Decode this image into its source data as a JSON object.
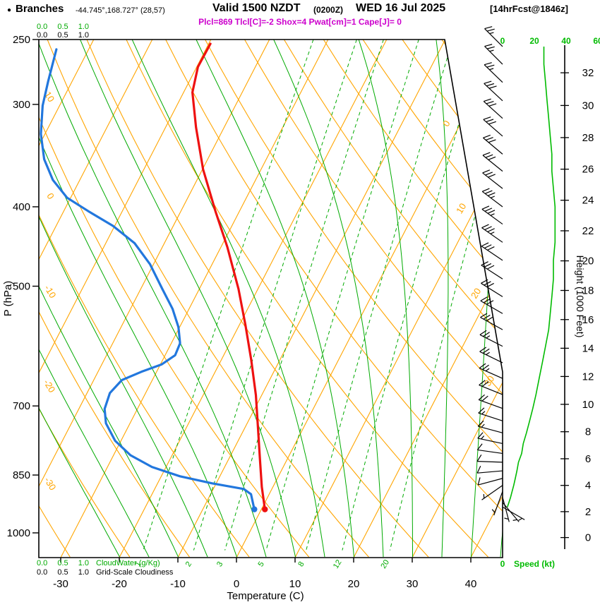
{
  "header": {
    "marker": "●",
    "station": "Branches",
    "coords": "-44.745°,168.727° (28,57)",
    "valid_main": "Valid 1500 NZDT",
    "valid_sub": "(0200Z)",
    "valid_date": "WED 16 Jul 2025",
    "fcst": "[14hrFcst@1846z]",
    "indices": "Plcl=869 Tlcl[C]=-2 Shox=4 Pwat[cm]=1 Cape[J]= 0"
  },
  "legend": {
    "scale": "0.0 0.5 1.0",
    "cloudwater_label": "CloudWater (g/Kg)",
    "gridscale_label": "Grid-Scale Cloudiness"
  },
  "chart_data": {
    "type": "skewt_log_p_sounding",
    "colors": {
      "temperature": "#ee1111",
      "dewpoint": "#2277dd",
      "grid_warm": "#ffa500",
      "grid_moist": "#00aa00",
      "speed_curve": "#00bb00",
      "indices_text": "#cc00cc",
      "frame": "#000000"
    },
    "axes": {
      "pressure": {
        "title": "P (hPa)",
        "ticks": [
          250,
          300,
          400,
          500,
          700,
          850,
          1000
        ],
        "range": [
          250,
          1070
        ]
      },
      "temperature": {
        "title": "Temperature (C)",
        "ticks": [
          -30,
          -20,
          -10,
          0,
          10,
          20,
          30,
          40
        ]
      },
      "height": {
        "title": "Height (1000 Feet)",
        "ticks": [
          0,
          2,
          4,
          6,
          8,
          10,
          12,
          14,
          16,
          18,
          20,
          22,
          24,
          26,
          28,
          30,
          32
        ]
      },
      "speed": {
        "title": "Speed (kt)",
        "ticks": [
          0,
          20,
          40,
          60
        ]
      },
      "dry_adiabat_labels_c": [
        10,
        0,
        -10,
        -20,
        -30
      ],
      "isotherm_labels_right_c": [
        0,
        10,
        20,
        30
      ]
    },
    "grid": {
      "isotherm_range_c": [
        -80,
        50
      ],
      "isotherm_step_c": 10,
      "dry_adiabat_theta_k": {
        "min": 230,
        "max": 400,
        "step": 10
      },
      "mixing_ratio_gkg": [
        1,
        2,
        3,
        5,
        8,
        12,
        20
      ],
      "moist_adiabat_surface_temps_c": [
        -20,
        -15,
        -10,
        -5,
        0,
        5,
        10,
        15,
        20,
        25,
        30,
        35,
        40,
        45
      ]
    },
    "surface": {
      "pressure_hpa": 936,
      "temperature_c": 0.6,
      "dewpoint_c": -1.2
    },
    "temperature_profile": [
      [
        936,
        0.6
      ],
      [
        879,
        -1.9
      ],
      [
        812,
        -4.7
      ],
      [
        750,
        -7.5
      ],
      [
        679,
        -11.0
      ],
      [
        615,
        -14.9
      ],
      [
        557,
        -19.0
      ],
      [
        504,
        -23.3
      ],
      [
        448,
        -28.9
      ],
      [
        405,
        -34.1
      ],
      [
        360,
        -39.9
      ],
      [
        320,
        -44.8
      ],
      [
        290,
        -48.5
      ],
      [
        270,
        -49.8
      ],
      [
        253,
        -49.7
      ]
    ],
    "dewpoint_profile": [
      [
        936,
        -1.2
      ],
      [
        897,
        -3.1
      ],
      [
        884,
        -4.8
      ],
      [
        870,
        -10.7
      ],
      [
        853,
        -16.8
      ],
      [
        831,
        -22.4
      ],
      [
        804,
        -27.1
      ],
      [
        772,
        -31.0
      ],
      [
        735,
        -34.1
      ],
      [
        706,
        -35.6
      ],
      [
        675,
        -36.1
      ],
      [
        651,
        -35.2
      ],
      [
        636,
        -32.6
      ],
      [
        623,
        -29.8
      ],
      [
        607,
        -28.3
      ],
      [
        587,
        -28.5
      ],
      [
        561,
        -30.2
      ],
      [
        533,
        -32.8
      ],
      [
        504,
        -36.3
      ],
      [
        470,
        -40.6
      ],
      [
        443,
        -45.1
      ],
      [
        422,
        -50.3
      ],
      [
        405,
        -55.8
      ],
      [
        390,
        -60.6
      ],
      [
        371,
        -64.6
      ],
      [
        350,
        -67.9
      ],
      [
        326,
        -70.7
      ],
      [
        301,
        -72.9
      ],
      [
        281,
        -74.1
      ],
      [
        257,
        -75.5
      ]
    ],
    "wind": [
      [
        255,
        315,
        26
      ],
      [
        268,
        315,
        26
      ],
      [
        282,
        314,
        27
      ],
      [
        297,
        313,
        28
      ],
      [
        312,
        312,
        29
      ],
      [
        328,
        311,
        30
      ],
      [
        345,
        310,
        31
      ],
      [
        362,
        309,
        31
      ],
      [
        380,
        308,
        32
      ],
      [
        400,
        307,
        33
      ],
      [
        420,
        306,
        33
      ],
      [
        442,
        305,
        33
      ],
      [
        465,
        304,
        32
      ],
      [
        490,
        303,
        32
      ],
      [
        515,
        302,
        31
      ],
      [
        540,
        300,
        30
      ],
      [
        565,
        299,
        29
      ],
      [
        592,
        297,
        27
      ],
      [
        620,
        296,
        25
      ],
      [
        648,
        294,
        23
      ],
      [
        678,
        292,
        21
      ],
      [
        705,
        290,
        19
      ],
      [
        730,
        288,
        17
      ],
      [
        755,
        285,
        15
      ],
      [
        778,
        282,
        13
      ],
      [
        800,
        278,
        12
      ],
      [
        820,
        272,
        10
      ],
      [
        840,
        265,
        9
      ],
      [
        858,
        255,
        8
      ],
      [
        875,
        235,
        7
      ],
      [
        890,
        200,
        6
      ],
      [
        905,
        165,
        5
      ],
      [
        918,
        140,
        4
      ],
      [
        930,
        120,
        3
      ]
    ]
  }
}
